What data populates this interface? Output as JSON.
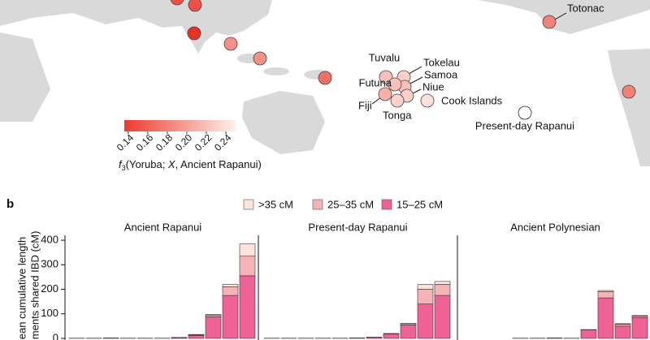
{
  "chart_data": [
    {
      "type": "map",
      "colorbar": {
        "lim": [
          0.136,
          0.25
        ],
        "colors": [
          "#ee3a2e",
          "#fdf0ea"
        ],
        "ticks": [
          0.14,
          0.16,
          0.18,
          {
            "value": 0.2,
            "label": "0.20"
          },
          0.22,
          0.24
        ],
        "label_parts": [
          "f",
          "3",
          "(Yoruba; ",
          "X",
          ", Ancient Rapanui)"
        ]
      },
      "points": [
        {
          "name": null,
          "value": 0.15
        },
        {
          "name": null,
          "value": 0.15
        },
        {
          "name": null,
          "value": 0.13
        },
        {
          "name": null,
          "value": 0.19
        },
        {
          "name": null,
          "value": 0.19
        },
        {
          "name": null,
          "value": 0.17
        },
        {
          "name": "Tuvalu",
          "value": 0.22
        },
        {
          "name": "Tokelau",
          "value": 0.23
        },
        {
          "name": "Samoa",
          "value": 0.22
        },
        {
          "name": "Futuna",
          "value": 0.22
        },
        {
          "name": "Niue",
          "value": 0.23
        },
        {
          "name": "Fiji",
          "value": 0.21
        },
        {
          "name": "Tonga",
          "value": 0.23
        },
        {
          "name": "Cook Islands",
          "value": 0.24
        },
        {
          "name": "Totonac",
          "value": 0.18
        },
        {
          "name": null,
          "value": 0.18
        },
        {
          "name": "Present-day Rapanui",
          "value": null
        }
      ]
    },
    {
      "type": "bar",
      "stacked": true,
      "panel_label": "b",
      "y_label": [
        "ean cumulative length",
        "gments shared IBD (cM)"
      ],
      "ylim": [
        0,
        420
      ],
      "yticks": [
        0,
        100,
        200,
        300,
        400
      ],
      "series": [
        {
          "name": ">35 cM",
          "color": "#fde3da"
        },
        {
          "name": "25–35 cM",
          "color": "#f6b3b6"
        },
        {
          "name": "15–25 cM",
          "color": "#ee6296"
        }
      ],
      "panels": [
        {
          "title": "Ancient Rapanui",
          "values": [
            [
              0,
              0,
              0,
              0,
              0,
              0,
              0,
              1,
              2,
              10,
              50
            ],
            [
              0,
              0,
              0,
              0,
              0,
              0,
              1,
              3,
              7,
              35,
              80
            ],
            [
              1,
              1,
              2,
              1,
              1,
              1,
              3,
              12,
              88,
              175,
              255
            ]
          ]
        },
        {
          "title": "Present-day Rapanui",
          "values": [
            [
              0,
              0,
              0,
              0,
              0,
              0,
              0,
              0,
              1,
              20,
              12
            ],
            [
              0,
              0,
              0,
              0,
              0,
              0,
              1,
              2,
              5,
              60,
              45
            ],
            [
              1,
              1,
              1,
              1,
              1,
              2,
              4,
              18,
              55,
              140,
              175
            ]
          ]
        },
        {
          "title": "Ancient Polynesian",
          "values": [
            [
              0,
              0,
              0,
              0,
              0,
              0,
              0,
              0,
              5,
              2,
              2
            ],
            [
              0,
              0,
              0,
              0,
              0,
              0,
              0,
              1,
              25,
              8,
              6
            ],
            [
              0,
              0,
              0,
              1,
              1,
              2,
              1,
              35,
              165,
              50,
              85
            ]
          ]
        }
      ]
    }
  ]
}
